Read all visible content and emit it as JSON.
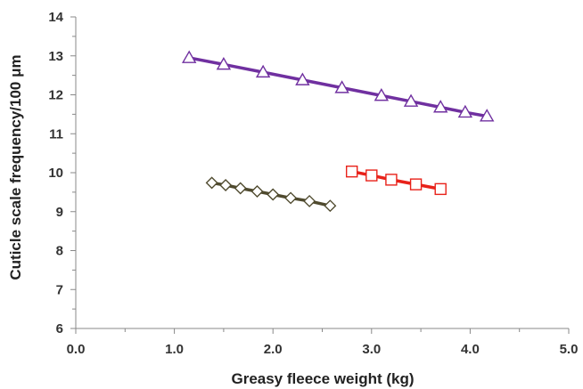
{
  "chart_data": {
    "type": "line",
    "xlabel": "Greasy fleece weight (kg)",
    "ylabel": "Cuticle scale frequency/100 μm",
    "xlim": [
      0,
      5
    ],
    "ylim": [
      6,
      14
    ],
    "x_ticks": [
      "0.0",
      "1.0",
      "2.0",
      "3.0",
      "4.0",
      "5.0"
    ],
    "y_ticks": [
      "6",
      "7",
      "8",
      "9",
      "10",
      "11",
      "12",
      "13",
      "14"
    ],
    "grid": false,
    "legend": "none",
    "series": [
      {
        "marker": "triangle",
        "color": "#7030A0",
        "points": [
          [
            1.15,
            12.95
          ],
          [
            1.5,
            12.78
          ],
          [
            1.9,
            12.58
          ],
          [
            2.3,
            12.38
          ],
          [
            2.7,
            12.18
          ],
          [
            3.1,
            11.98
          ],
          [
            3.4,
            11.83
          ],
          [
            3.7,
            11.68
          ],
          [
            3.95,
            11.55
          ],
          [
            4.17,
            11.45
          ]
        ]
      },
      {
        "marker": "diamond",
        "color": "#4F4A2E",
        "points": [
          [
            1.38,
            9.74
          ],
          [
            1.52,
            9.68
          ],
          [
            1.67,
            9.6
          ],
          [
            1.84,
            9.52
          ],
          [
            2.0,
            9.44
          ],
          [
            2.18,
            9.35
          ],
          [
            2.37,
            9.27
          ],
          [
            2.58,
            9.15
          ]
        ]
      },
      {
        "marker": "square",
        "color": "#E8221A",
        "points": [
          [
            2.8,
            10.03
          ],
          [
            3.0,
            9.93
          ],
          [
            3.2,
            9.82
          ],
          [
            3.45,
            9.7
          ],
          [
            3.7,
            9.58
          ]
        ]
      }
    ]
  }
}
